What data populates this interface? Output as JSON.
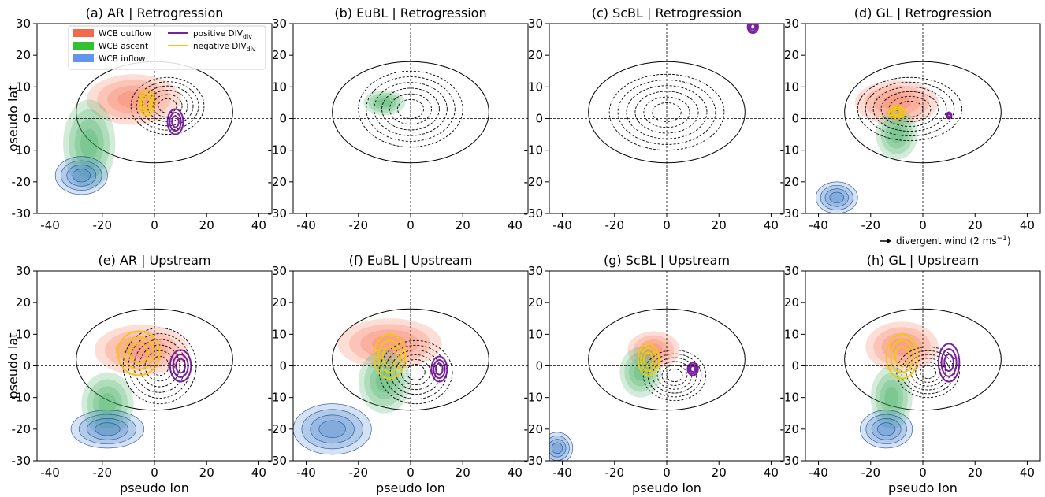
{
  "chart_data": [
    {
      "type": "contour",
      "title": "(a) AR | Retrogression",
      "ylabel": "pseudo lat",
      "xlim": [
        -45,
        45
      ],
      "ylim": [
        -30,
        30
      ],
      "xticks": [
        -40,
        -20,
        0,
        20,
        40
      ],
      "yticks": [
        -30,
        -20,
        -10,
        0,
        10,
        20,
        30
      ],
      "legend": {
        "position": "upper left",
        "series": [
          {
            "name": "WCB outflow",
            "color": "#f4694b"
          },
          {
            "name": "WCB ascent",
            "color": "#33c033"
          },
          {
            "name": "WCB inflow",
            "color": "#6495ed"
          },
          {
            "name": "positive DIV",
            "subscript": "div",
            "color": "#7b1fa2"
          },
          {
            "name": "negative DIV",
            "subscript": "div",
            "color": "#f2c80f"
          }
        ]
      }
    },
    {
      "type": "contour",
      "title": "(b) EuBL | Retrogression",
      "xlim": [
        -45,
        45
      ],
      "ylim": [
        -30,
        30
      ],
      "xticks": [
        -40,
        -20,
        0,
        20,
        40
      ],
      "yticks": [
        -30,
        -20,
        -10,
        0,
        10,
        20,
        30
      ]
    },
    {
      "type": "contour",
      "title": "(c) ScBL | Retrogression",
      "xlim": [
        -45,
        45
      ],
      "ylim": [
        -30,
        30
      ],
      "xticks": [
        -40,
        -20,
        0,
        20,
        40
      ],
      "yticks": [
        -30,
        -20,
        -10,
        0,
        10,
        20,
        30
      ]
    },
    {
      "type": "contour",
      "title": "(d) GL | Retrogression",
      "xlim": [
        -45,
        45
      ],
      "ylim": [
        -30,
        30
      ],
      "xticks": [
        -40,
        -20,
        0,
        20,
        40
      ],
      "yticks": [
        -30,
        -20,
        -10,
        0,
        10,
        20,
        30
      ],
      "quiver_key": {
        "text": "divergent wind (2 ms",
        "sup": "−1",
        "end": ")"
      }
    },
    {
      "type": "contour",
      "title": "(e) AR | Upstream",
      "ylabel": "pseudo lat",
      "xlabel": "pseudo lon",
      "xlim": [
        -45,
        45
      ],
      "ylim": [
        -30,
        30
      ],
      "xticks": [
        -40,
        -20,
        0,
        20,
        40
      ],
      "yticks": [
        -30,
        -20,
        -10,
        0,
        10,
        20,
        30
      ]
    },
    {
      "type": "contour",
      "title": "(f) EuBL | Upstream",
      "xlabel": "pseudo lon",
      "xlim": [
        -45,
        45
      ],
      "ylim": [
        -30,
        30
      ],
      "xticks": [
        -40,
        -20,
        0,
        20,
        40
      ],
      "yticks": [
        -30,
        -20,
        -10,
        0,
        10,
        20,
        30
      ]
    },
    {
      "type": "contour",
      "title": "(g) ScBL | Upstream",
      "xlabel": "pseudo lon",
      "xlim": [
        -45,
        45
      ],
      "ylim": [
        -30,
        30
      ],
      "xticks": [
        -40,
        -20,
        0,
        20,
        40
      ],
      "yticks": [
        -30,
        -20,
        -10,
        0,
        10,
        20,
        30
      ]
    },
    {
      "type": "contour",
      "title": "(h) GL | Upstream",
      "xlabel": "pseudo lon",
      "xlim": [
        -45,
        45
      ],
      "ylim": [
        -30,
        30
      ],
      "xticks": [
        -40,
        -20,
        0,
        20,
        40
      ],
      "yticks": [
        -30,
        -20,
        -10,
        0,
        10,
        20,
        30
      ]
    }
  ]
}
